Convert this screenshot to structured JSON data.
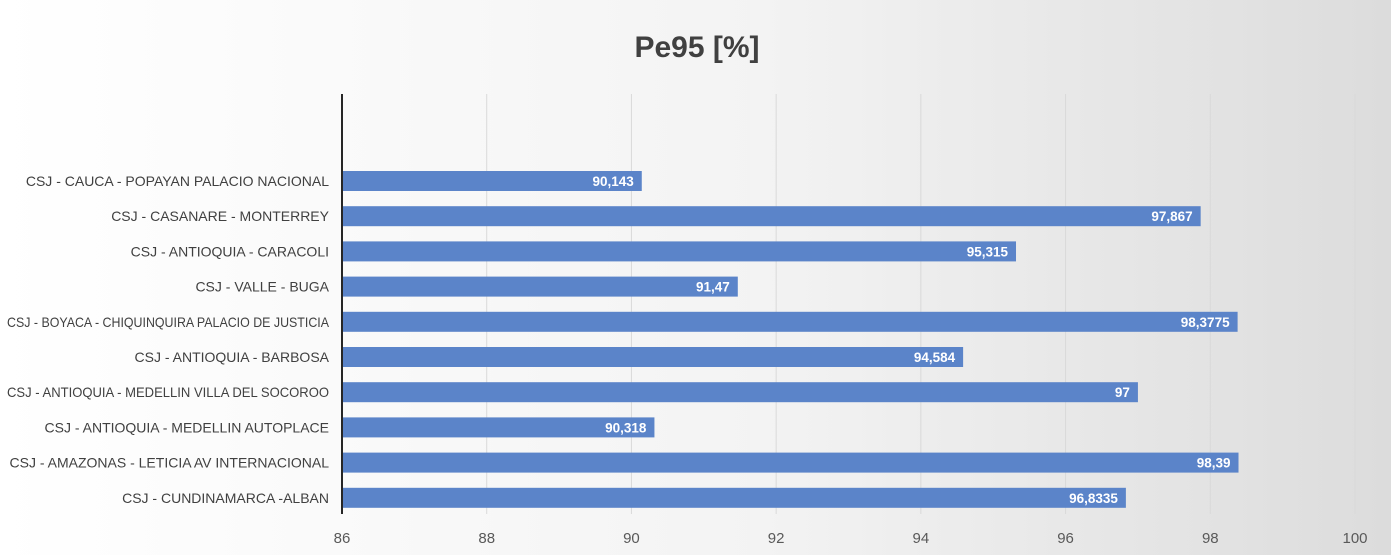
{
  "chart_data": {
    "type": "bar",
    "orientation": "horizontal",
    "title": "Pe95 [%]",
    "xlabel": "",
    "ylabel": "",
    "xlim": [
      86,
      100
    ],
    "x_ticks": [
      86,
      88,
      90,
      92,
      94,
      96,
      98,
      100
    ],
    "grid": true,
    "legend": "none",
    "bar_color": "#5b84c9",
    "categories": [
      "CSJ - CAUCA - POPAYAN PALACIO NACIONAL",
      "CSJ - CASANARE - MONTERREY",
      "CSJ - ANTIOQUIA - CARACOLI",
      "CSJ - VALLE - BUGA",
      "CSJ - BOYACA - CHIQUINQUIRA PALACIO DE JUSTICIA",
      "CSJ - ANTIOQUIA - BARBOSA",
      "CSJ - ANTIOQUIA - MEDELLIN VILLA DEL SOCOROO",
      "CSJ - ANTIOQUIA - MEDELLIN AUTOPLACE",
      "CSJ - AMAZONAS - LETICIA AV INTERNACIONAL",
      "CSJ - CUNDINAMARCA -ALBAN"
    ],
    "values": [
      90.143,
      97.867,
      95.315,
      91.47,
      98.3775,
      94.584,
      97,
      90.318,
      98.39,
      96.8335
    ],
    "data_labels": [
      "90,143",
      "97,867",
      "95,315",
      "91,47",
      "98,3775",
      "94,584",
      "97",
      "90,318",
      "98,39",
      "96,8335"
    ]
  }
}
